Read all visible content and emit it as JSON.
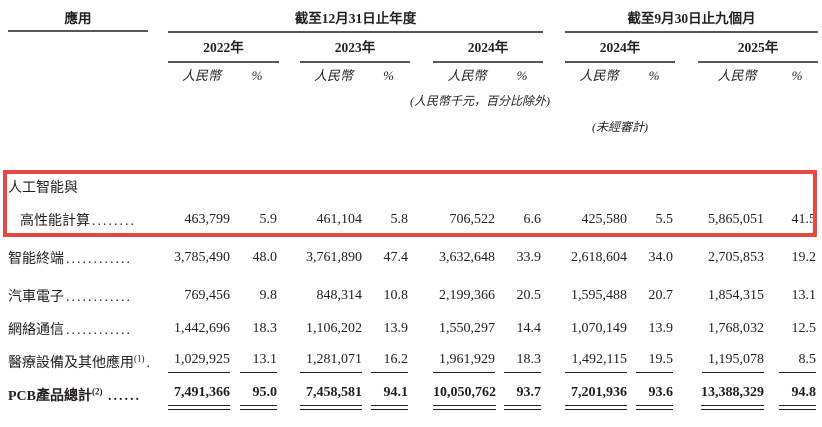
{
  "document": {
    "app_column_label": "應用",
    "period_groups": [
      {
        "title": "截至12月31日止年度",
        "years": [
          "2022年",
          "2023年",
          "2024年"
        ]
      },
      {
        "title": "截至9月30日止九個月",
        "years": [
          "2024年",
          "2025年"
        ]
      }
    ],
    "currency_label": "人民幣",
    "percent_label": "%",
    "unit_note": "(人民幣千元，百分比除外)",
    "unaudited_note": "(未經審計)"
  },
  "table": {
    "rows": [
      {
        "label_lines": [
          "人工智能與",
          "高性能計算"
        ],
        "sup": "",
        "leader": "........",
        "values": [
          "463,799",
          "5.9",
          "461,104",
          "5.8",
          "706,522",
          "6.6",
          "425,580",
          "5.5",
          "5,865,051",
          "41.5"
        ],
        "highlighted": true
      },
      {
        "label_lines": [
          "智能終端"
        ],
        "sup": "",
        "leader": "............",
        "values": [
          "3,785,490",
          "48.0",
          "3,761,890",
          "47.4",
          "3,632,648",
          "33.9",
          "2,618,604",
          "34.0",
          "2,705,853",
          "19.2"
        ]
      },
      {
        "label_lines": [
          "汽車電子"
        ],
        "sup": "",
        "leader": "............",
        "values": [
          "769,456",
          "9.8",
          "848,314",
          "10.8",
          "2,199,366",
          "20.5",
          "1,595,488",
          "20.7",
          "1,854,315",
          "13.1"
        ]
      },
      {
        "label_lines": [
          "網絡通信"
        ],
        "sup": "",
        "leader": "............",
        "values": [
          "1,442,696",
          "18.3",
          "1,106,202",
          "13.9",
          "1,550,297",
          "14.4",
          "1,070,149",
          "13.9",
          "1,768,032",
          "12.5"
        ]
      },
      {
        "label_lines": [
          "醫療設備及其他應用"
        ],
        "sup": "(1)",
        "leader": ".",
        "values": [
          "1,029,925",
          "13.1",
          "1,281,071",
          "16.2",
          "1,961,929",
          "18.3",
          "1,492,115",
          "19.5",
          "1,195,078",
          "8.5"
        ],
        "underline": true
      },
      {
        "label_lines": [
          "PCB產品總計"
        ],
        "sup": "(2)",
        "leader": "......",
        "values": [
          "7,491,366",
          "95.0",
          "7,458,581",
          "94.1",
          "10,050,762",
          "93.7",
          "7,201,936",
          "93.6",
          "13,388,329",
          "94.8"
        ],
        "total": true
      }
    ]
  },
  "colors": {
    "highlight": "#e94842",
    "text": "#231f20",
    "rule": "#56575b"
  }
}
